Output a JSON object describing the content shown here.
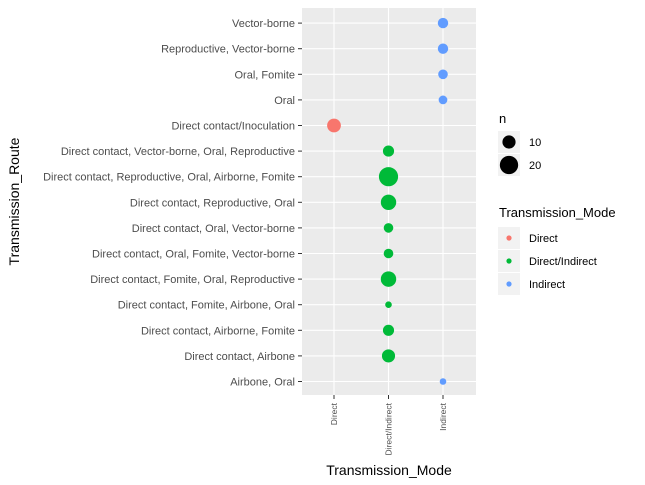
{
  "chart_data": {
    "type": "scatter",
    "xlabel": "Transmission_Mode",
    "ylabel": "Transmission_Route",
    "x_categories": [
      "Direct",
      "Direct/Indirect",
      "Indirect"
    ],
    "y_categories": [
      "Airbone, Oral",
      "Direct contact, Airbone",
      "Direct contact, Airborne, Fomite",
      "Direct contact, Fomite, Airbone, Oral",
      "Direct contact, Fomite, Oral, Reproductive",
      "Direct contact, Oral, Fomite, Vector-borne",
      "Direct contact, Oral, Vector-borne",
      "Direct contact, Reproductive, Oral",
      "Direct contact, Reproductive, Oral, Airborne, Fomite",
      "Direct contact, Vector-borne, Oral, Reproductive",
      "Direct contact/Inoculation",
      "Oral",
      "Oral, Fomite",
      "Reproductive, Vector-borne",
      "Vector-borne"
    ],
    "points": [
      {
        "x": "Indirect",
        "y": "Vector-borne",
        "n": 6
      },
      {
        "x": "Indirect",
        "y": "Reproductive, Vector-borne",
        "n": 6
      },
      {
        "x": "Indirect",
        "y": "Oral, Fomite",
        "n": 5
      },
      {
        "x": "Indirect",
        "y": "Oral",
        "n": 4
      },
      {
        "x": "Direct",
        "y": "Direct contact/Inoculation",
        "n": 11
      },
      {
        "x": "Direct/Indirect",
        "y": "Direct contact, Vector-borne, Oral, Reproductive",
        "n": 7
      },
      {
        "x": "Direct/Indirect",
        "y": "Direct contact, Reproductive, Oral, Airborne, Fomite",
        "n": 22
      },
      {
        "x": "Direct/Indirect",
        "y": "Direct contact, Reproductive, Oral",
        "n": 14
      },
      {
        "x": "Direct/Indirect",
        "y": "Direct contact, Oral, Vector-borne",
        "n": 5
      },
      {
        "x": "Direct/Indirect",
        "y": "Direct contact, Oral, Fomite, Vector-borne",
        "n": 5
      },
      {
        "x": "Direct/Indirect",
        "y": "Direct contact, Fomite, Oral, Reproductive",
        "n": 14
      },
      {
        "x": "Direct/Indirect",
        "y": "Direct contact, Fomite, Airbone, Oral",
        "n": 2
      },
      {
        "x": "Direct/Indirect",
        "y": "Direct contact, Airborne, Fomite",
        "n": 7
      },
      {
        "x": "Direct/Indirect",
        "y": "Direct contact, Airbone",
        "n": 10
      },
      {
        "x": "Indirect",
        "y": "Airbone, Oral",
        "n": 2
      }
    ],
    "size_legend": {
      "title": "n",
      "breaks": [
        10,
        20
      ]
    },
    "color_legend": {
      "title": "Transmission_Mode",
      "entries": [
        {
          "label": "Direct",
          "color": "#F8766D"
        },
        {
          "label": "Direct/Indirect",
          "color": "#00BA38"
        },
        {
          "label": "Indirect",
          "color": "#619CFF"
        }
      ]
    },
    "colors": {
      "Direct": "#F8766D",
      "Direct/Indirect": "#00BA38",
      "Indirect": "#619CFF"
    },
    "panel_background": "#EBEBEB",
    "grid": true,
    "legend_position": "right"
  }
}
